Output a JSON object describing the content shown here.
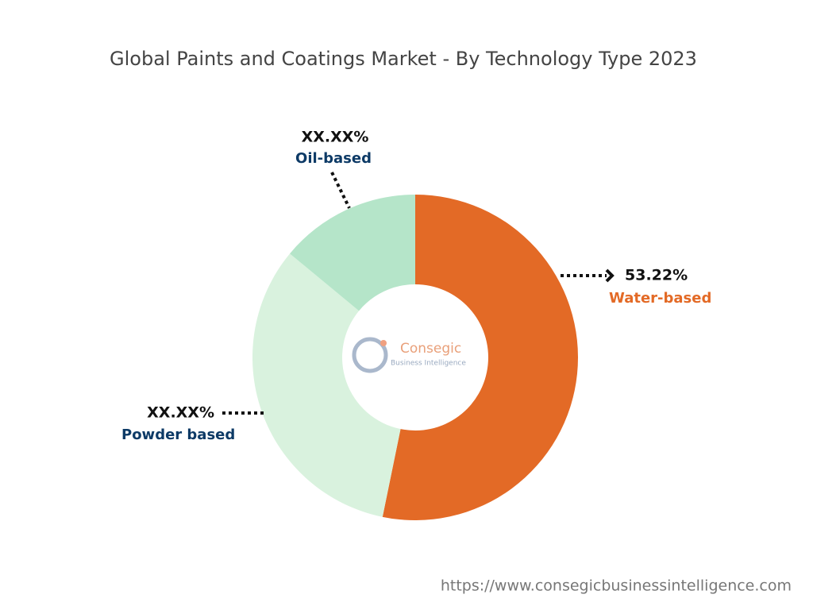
{
  "chart_data": {
    "type": "pie",
    "title": "Global Paints and Coatings Market - By Technology Type 2023",
    "categories": [
      "Water-based",
      "Powder based",
      "Oil-based"
    ],
    "values": [
      53.22,
      32.78,
      14
    ],
    "value_labels": [
      "53.22%",
      "XX.XX%",
      "XX.XX%"
    ],
    "colors": [
      "#e36a26",
      "#d9f2de",
      "#b5e5c9"
    ]
  },
  "logo": {
    "name": "Consegic",
    "tagline": "Business Intelligence"
  },
  "source_url": "https://www.consegicbusinessintelligence.com"
}
